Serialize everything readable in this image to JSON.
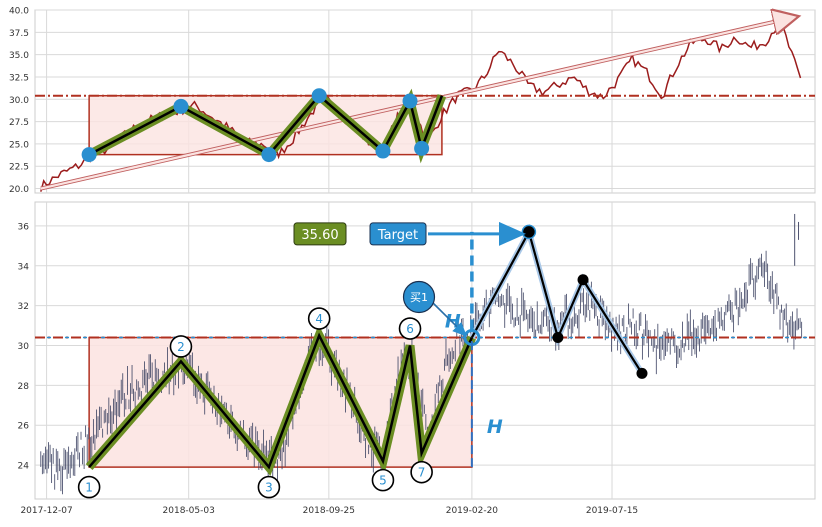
{
  "chart_data": [
    {
      "type": "line",
      "title": "",
      "xlabel": "",
      "ylabel": "",
      "ylim": [
        19.5,
        40
      ],
      "x_range": [
        "2017-11-25",
        "2020-02-10"
      ],
      "grid": true,
      "yticks": [
        "20.0",
        "22.5",
        "25.0",
        "27.5",
        "30.0",
        "32.5",
        "35.0",
        "37.5",
        "40.0"
      ],
      "ytick_values": [
        20,
        22.5,
        25,
        27.5,
        30,
        32.5,
        35,
        37.5,
        40
      ],
      "series": [
        {
          "type": "line",
          "color": "#9b1c1c",
          "x": [
            "2017-12-01",
            "2017-12-20",
            "2018-01-10",
            "2018-01-25",
            "2018-02-10",
            "2018-02-28",
            "2018-03-15",
            "2018-04-01",
            "2018-04-20",
            "2018-05-10",
            "2018-05-30",
            "2018-06-15",
            "2018-07-01",
            "2018-07-20",
            "2018-08-05",
            "2018-08-20",
            "2018-09-05",
            "2018-09-20",
            "2018-10-05",
            "2018-10-20",
            "2018-11-05",
            "2018-11-20",
            "2018-12-05",
            "2018-12-20",
            "2019-01-05",
            "2019-01-20",
            "2019-02-05",
            "2019-02-20",
            "2019-03-05",
            "2019-03-20",
            "2019-04-05",
            "2019-04-20",
            "2019-05-05",
            "2019-05-20",
            "2019-06-05",
            "2019-06-20",
            "2019-07-05",
            "2019-07-20",
            "2019-08-05",
            "2019-08-20",
            "2019-09-05",
            "2019-09-20",
            "2019-10-05",
            "2019-10-20",
            "2019-11-05",
            "2019-11-20",
            "2019-12-05",
            "2019-12-20",
            "2020-01-05",
            "2020-01-20",
            "2020-01-28"
          ],
          "values": [
            20.2,
            21.5,
            22.6,
            23.9,
            24.5,
            26.2,
            27.3,
            28.0,
            28.6,
            29.3,
            27.8,
            26.6,
            25.2,
            24.9,
            23.9,
            25.7,
            28.2,
            30.3,
            28.5,
            27.1,
            25.2,
            24.3,
            28.0,
            29.5,
            25.1,
            28.2,
            30.4,
            31.0,
            32.5,
            35.5,
            33.8,
            31.5,
            30.8,
            31.6,
            32.5,
            31.0,
            30.2,
            32.0,
            34.5,
            33.0,
            30.4,
            33.8,
            36.3,
            36.8,
            35.6,
            37.0,
            35.8,
            36.4,
            38.8,
            34.0,
            31.6
          ]
        }
      ],
      "annotations": {
        "resistance_level": 30.4,
        "box": {
          "x0": "2018-01-20",
          "x1": "2019-01-20",
          "y0": 23.8,
          "y1": 30.4
        },
        "trend_arrow": {
          "x0": "2017-12-01",
          "y0": 20.0,
          "x1": "2020-01-20",
          "y1": 39.2
        },
        "pattern_points": {
          "x": [
            "2018-01-20",
            "2018-04-25",
            "2018-07-25",
            "2018-09-15",
            "2018-11-20",
            "2018-12-18",
            "2018-12-30",
            "2019-01-20"
          ],
          "values": [
            23.8,
            29.2,
            23.8,
            30.4,
            24.2,
            29.8,
            24.5,
            30.4
          ]
        }
      }
    },
    {
      "type": "line",
      "title": "",
      "xlabel": "",
      "ylabel": "",
      "ylim": [
        22.3,
        37.2
      ],
      "x_range": [
        "2017-11-25",
        "2020-02-10"
      ],
      "grid": true,
      "xticks": [
        "2017-12-07",
        "2018-05-03",
        "2018-09-25",
        "2019-02-20",
        "2019-07-15"
      ],
      "yticks": [
        "24",
        "26",
        "28",
        "30",
        "32",
        "34",
        "36"
      ],
      "ytick_values": [
        24,
        26,
        28,
        30,
        32,
        34,
        36
      ],
      "series": [
        {
          "type": "line",
          "name": "",
          "color": "#3a4060",
          "x": [
            "2017-12-01",
            "2017-12-20",
            "2018-01-10",
            "2018-01-25",
            "2018-02-10",
            "2018-02-28",
            "2018-03-15",
            "2018-04-01",
            "2018-04-20",
            "2018-05-10",
            "2018-05-30",
            "2018-06-15",
            "2018-07-01",
            "2018-07-20",
            "2018-08-05",
            "2018-08-20",
            "2018-09-05",
            "2018-09-20",
            "2018-10-05",
            "2018-10-20",
            "2018-11-05",
            "2018-11-20",
            "2018-12-05",
            "2018-12-20",
            "2019-01-05",
            "2019-01-20",
            "2019-02-05",
            "2019-02-20",
            "2019-03-05",
            "2019-03-20",
            "2019-04-05",
            "2019-04-20",
            "2019-05-05",
            "2019-05-20",
            "2019-06-05",
            "2019-06-20",
            "2019-07-05",
            "2019-07-20",
            "2019-08-05",
            "2019-08-20",
            "2019-09-05",
            "2019-09-20",
            "2019-10-05",
            "2019-10-20",
            "2019-11-05",
            "2019-11-20",
            "2019-12-05",
            "2019-12-20",
            "2020-01-05",
            "2020-01-20",
            "2020-01-28"
          ],
          "values": [
            24.2,
            23.6,
            24.8,
            25.6,
            26.6,
            27.6,
            28.1,
            28.5,
            29.0,
            28.3,
            27.1,
            26.2,
            25.3,
            24.6,
            24.3,
            26.8,
            29.3,
            30.2,
            28.6,
            27.0,
            25.2,
            24.6,
            28.2,
            29.5,
            25.4,
            28.5,
            30.4,
            30.8,
            31.6,
            32.4,
            31.8,
            31.3,
            31.2,
            31.1,
            31.4,
            32.3,
            31.2,
            30.6,
            31.0,
            30.4,
            29.7,
            30.1,
            30.5,
            30.8,
            31.2,
            31.9,
            33.1,
            33.7,
            31.8,
            30.9,
            30.3
          ]
        }
      ],
      "annotations": {
        "resistance_level": 30.4,
        "box": {
          "x0": "2018-01-20",
          "x1": "2019-02-20",
          "y0": 23.9,
          "y1": 30.4
        },
        "pattern_points": {
          "x": [
            "2018-01-20",
            "2018-04-25",
            "2018-07-25",
            "2018-09-15",
            "2018-11-20",
            "2018-12-18",
            "2018-12-30",
            "2019-02-20"
          ],
          "values": [
            23.9,
            29.2,
            23.9,
            30.5,
            24.2,
            30.0,
            24.6,
            30.4
          ],
          "labels": [
            "1",
            "2",
            "3",
            "4",
            "5",
            "6",
            "7"
          ]
        },
        "projection_points": {
          "x": [
            "2019-02-20",
            "2019-04-20",
            "2019-05-20",
            "2019-06-15",
            "2019-08-15"
          ],
          "values": [
            30.4,
            35.7,
            30.4,
            33.3,
            28.6
          ]
        },
        "buy_marker": {
          "label": "买1",
          "x": "2019-02-20",
          "y": 30.4
        },
        "target_label": "Target",
        "price_label": "35.60",
        "height_label": "H"
      }
    }
  ],
  "colors": {
    "price_line": "#9b1c1c",
    "ohlc_bars": "#3a4060",
    "box_fill": "#fbe3e1",
    "box_edge": "#b03020",
    "resistance": "#b03020",
    "pattern_outer": "#6b8e23",
    "pattern_inner": "#000000",
    "marker_blue": "#2a8fd0",
    "dashed_blue": "#2a8fd0",
    "target_box": "#2a8fd0",
    "price_box": "#6b8e23"
  },
  "icons": {
    "buy_marker": "speech-bubble-icon",
    "target_arrow": "arrow-right-icon"
  }
}
